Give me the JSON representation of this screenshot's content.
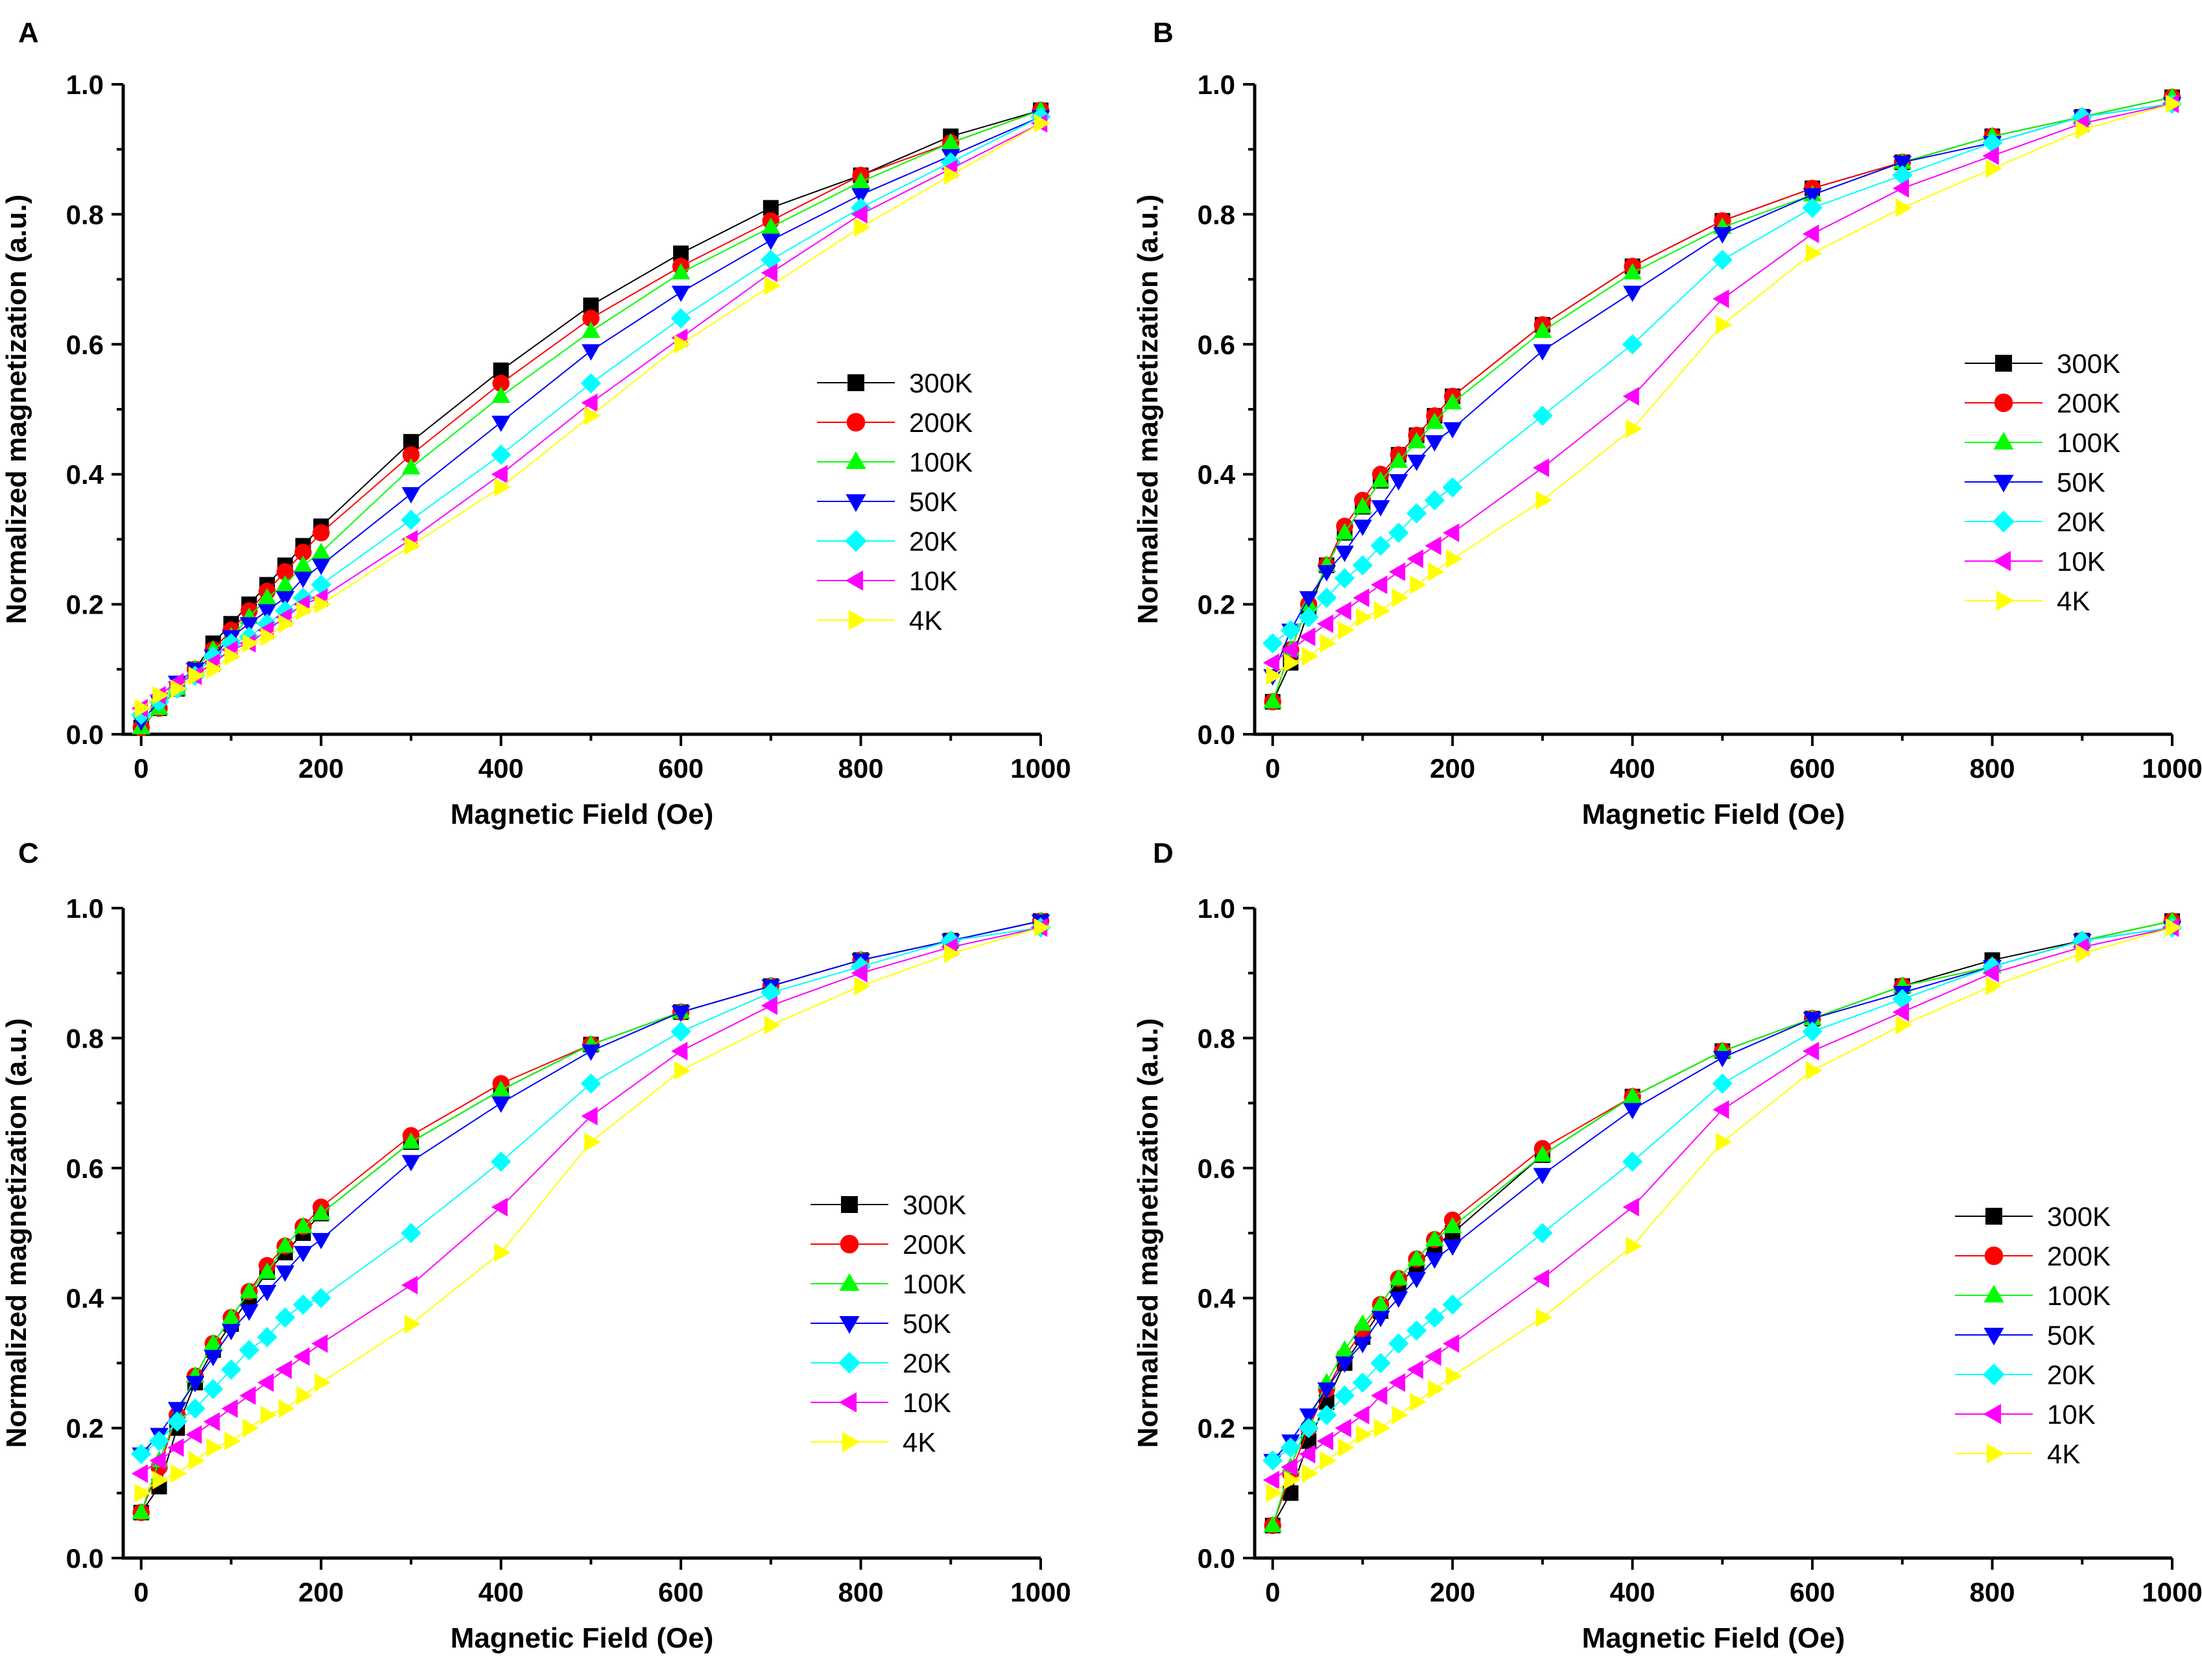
{
  "colors": {
    "300K": "#000000",
    "200K": "#ff0000",
    "100K": "#00ff00",
    "50K": "#0000ff",
    "20K": "#00ffff",
    "10K": "#ff00ff",
    "4K": "#ffff00"
  },
  "markers": {
    "300K": "square",
    "200K": "circle",
    "100K": "triangle-up",
    "50K": "triangle-down",
    "20K": "diamond",
    "10K": "triangle-left",
    "4K": "triangle-right"
  },
  "chart_data": [
    {
      "panel": "A",
      "type": "line",
      "xlabel": "Magnetic Field (Oe)",
      "ylabel": "Normalized magnetization (a.u.)",
      "xlim": [
        -20,
        1000
      ],
      "ylim": [
        0,
        1.0
      ],
      "xticks": [
        "0",
        "200",
        "400",
        "600",
        "800",
        "1000"
      ],
      "yticks": [
        "0.0",
        "0.2",
        "0.4",
        "0.6",
        "0.8",
        "1.0"
      ],
      "legend_position": "middle-right",
      "x": [
        0,
        20,
        40,
        60,
        80,
        100,
        120,
        140,
        160,
        180,
        200,
        300,
        400,
        500,
        600,
        700,
        800,
        900,
        1000
      ],
      "series": [
        {
          "name": "300K",
          "values": [
            0.01,
            0.04,
            0.07,
            0.1,
            0.14,
            0.17,
            0.2,
            0.23,
            0.26,
            0.29,
            0.32,
            0.45,
            0.56,
            0.66,
            0.74,
            0.81,
            0.86,
            0.92,
            0.96
          ]
        },
        {
          "name": "200K",
          "values": [
            0.01,
            0.04,
            0.07,
            0.1,
            0.13,
            0.16,
            0.19,
            0.22,
            0.25,
            0.28,
            0.31,
            0.43,
            0.54,
            0.64,
            0.72,
            0.79,
            0.86,
            0.91,
            0.96
          ]
        },
        {
          "name": "100K",
          "values": [
            0.01,
            0.04,
            0.07,
            0.1,
            0.13,
            0.15,
            0.18,
            0.21,
            0.23,
            0.26,
            0.28,
            0.41,
            0.52,
            0.62,
            0.71,
            0.78,
            0.85,
            0.91,
            0.96
          ]
        },
        {
          "name": "50K",
          "values": [
            0.02,
            0.05,
            0.08,
            0.1,
            0.12,
            0.15,
            0.17,
            0.19,
            0.21,
            0.24,
            0.26,
            0.37,
            0.48,
            0.59,
            0.68,
            0.76,
            0.83,
            0.89,
            0.95
          ]
        },
        {
          "name": "20K",
          "values": [
            0.03,
            0.05,
            0.07,
            0.09,
            0.12,
            0.14,
            0.15,
            0.17,
            0.19,
            0.21,
            0.23,
            0.33,
            0.43,
            0.54,
            0.64,
            0.73,
            0.81,
            0.88,
            0.95
          ]
        },
        {
          "name": "10K",
          "values": [
            0.04,
            0.06,
            0.08,
            0.09,
            0.11,
            0.13,
            0.14,
            0.16,
            0.18,
            0.2,
            0.21,
            0.3,
            0.4,
            0.51,
            0.61,
            0.71,
            0.8,
            0.87,
            0.94
          ]
        },
        {
          "name": "4K",
          "values": [
            0.04,
            0.06,
            0.07,
            0.09,
            0.1,
            0.12,
            0.14,
            0.15,
            0.17,
            0.19,
            0.2,
            0.29,
            0.38,
            0.49,
            0.6,
            0.69,
            0.78,
            0.86,
            0.94
          ]
        }
      ]
    },
    {
      "panel": "B",
      "type": "line",
      "xlabel": "Magnetic Field (Oe)",
      "ylabel": "Normalized magnetization (a.u.)",
      "xlim": [
        -20,
        1000
      ],
      "ylim": [
        0,
        1.0
      ],
      "xticks": [
        "0",
        "200",
        "400",
        "600",
        "800",
        "1000"
      ],
      "yticks": [
        "0.0",
        "0.2",
        "0.4",
        "0.6",
        "0.8",
        "1.0"
      ],
      "legend_position": "middle-right",
      "x": [
        0,
        20,
        40,
        60,
        80,
        100,
        120,
        140,
        160,
        180,
        200,
        300,
        400,
        500,
        600,
        700,
        800,
        900,
        1000
      ],
      "series": [
        {
          "name": "300K",
          "values": [
            0.05,
            0.11,
            0.19,
            0.26,
            0.31,
            0.35,
            0.39,
            0.43,
            0.46,
            0.49,
            0.52,
            0.63,
            0.72,
            0.79,
            0.84,
            0.88,
            0.92,
            0.95,
            0.98
          ]
        },
        {
          "name": "200K",
          "values": [
            0.05,
            0.13,
            0.2,
            0.26,
            0.32,
            0.36,
            0.4,
            0.43,
            0.46,
            0.49,
            0.52,
            0.63,
            0.72,
            0.79,
            0.84,
            0.88,
            0.92,
            0.95,
            0.98
          ]
        },
        {
          "name": "100K",
          "values": [
            0.05,
            0.13,
            0.2,
            0.26,
            0.31,
            0.35,
            0.39,
            0.42,
            0.45,
            0.48,
            0.51,
            0.62,
            0.71,
            0.78,
            0.83,
            0.88,
            0.92,
            0.95,
            0.98
          ]
        },
        {
          "name": "50K",
          "values": [
            0.09,
            0.16,
            0.21,
            0.25,
            0.28,
            0.32,
            0.35,
            0.39,
            0.42,
            0.45,
            0.47,
            0.59,
            0.68,
            0.77,
            0.83,
            0.88,
            0.91,
            0.95,
            0.97
          ]
        },
        {
          "name": "20K",
          "values": [
            0.14,
            0.16,
            0.18,
            0.21,
            0.24,
            0.26,
            0.29,
            0.31,
            0.34,
            0.36,
            0.38,
            0.49,
            0.6,
            0.73,
            0.81,
            0.86,
            0.91,
            0.95,
            0.97
          ]
        },
        {
          "name": "10K",
          "values": [
            0.11,
            0.13,
            0.15,
            0.17,
            0.19,
            0.21,
            0.23,
            0.25,
            0.27,
            0.29,
            0.31,
            0.41,
            0.52,
            0.67,
            0.77,
            0.84,
            0.89,
            0.94,
            0.97
          ]
        },
        {
          "name": "4K",
          "values": [
            0.09,
            0.11,
            0.12,
            0.14,
            0.16,
            0.18,
            0.19,
            0.21,
            0.23,
            0.25,
            0.27,
            0.36,
            0.47,
            0.63,
            0.74,
            0.81,
            0.87,
            0.93,
            0.97
          ]
        }
      ]
    },
    {
      "panel": "C",
      "type": "line",
      "xlabel": "Magnetic Field (Oe)",
      "ylabel": "Normalized magnetization (a.u.)",
      "xlim": [
        -20,
        1000
      ],
      "ylim": [
        0,
        1.0
      ],
      "xticks": [
        "0",
        "200",
        "400",
        "600",
        "800",
        "1000"
      ],
      "yticks": [
        "0.0",
        "0.2",
        "0.4",
        "0.6",
        "0.8",
        "1.0"
      ],
      "legend_position": "lower-right",
      "x": [
        0,
        20,
        40,
        60,
        80,
        100,
        120,
        140,
        160,
        180,
        200,
        300,
        400,
        500,
        600,
        700,
        800,
        900,
        1000
      ],
      "series": [
        {
          "name": "300K",
          "values": [
            0.07,
            0.11,
            0.2,
            0.27,
            0.32,
            0.36,
            0.4,
            0.44,
            0.47,
            0.5,
            0.53,
            0.64,
            0.72,
            0.79,
            0.84,
            0.88,
            0.92,
            0.95,
            0.98
          ]
        },
        {
          "name": "200K",
          "values": [
            0.07,
            0.14,
            0.22,
            0.28,
            0.33,
            0.37,
            0.41,
            0.45,
            0.48,
            0.51,
            0.54,
            0.65,
            0.73,
            0.79,
            0.84,
            0.88,
            0.92,
            0.95,
            0.98
          ]
        },
        {
          "name": "100K",
          "values": [
            0.07,
            0.15,
            0.22,
            0.28,
            0.33,
            0.37,
            0.41,
            0.44,
            0.48,
            0.51,
            0.53,
            0.64,
            0.72,
            0.79,
            0.84,
            0.88,
            0.92,
            0.95,
            0.98
          ]
        },
        {
          "name": "50K",
          "values": [
            0.16,
            0.19,
            0.23,
            0.27,
            0.31,
            0.35,
            0.38,
            0.41,
            0.44,
            0.47,
            0.49,
            0.61,
            0.7,
            0.78,
            0.84,
            0.88,
            0.92,
            0.95,
            0.98
          ]
        },
        {
          "name": "20K",
          "values": [
            0.16,
            0.18,
            0.21,
            0.23,
            0.26,
            0.29,
            0.32,
            0.34,
            0.37,
            0.39,
            0.4,
            0.5,
            0.61,
            0.73,
            0.81,
            0.87,
            0.91,
            0.95,
            0.97
          ]
        },
        {
          "name": "10K",
          "values": [
            0.13,
            0.15,
            0.17,
            0.19,
            0.21,
            0.23,
            0.25,
            0.27,
            0.29,
            0.31,
            0.33,
            0.42,
            0.54,
            0.68,
            0.78,
            0.85,
            0.9,
            0.94,
            0.97
          ]
        },
        {
          "name": "4K",
          "values": [
            0.1,
            0.12,
            0.13,
            0.15,
            0.17,
            0.18,
            0.2,
            0.22,
            0.23,
            0.25,
            0.27,
            0.36,
            0.47,
            0.64,
            0.75,
            0.82,
            0.88,
            0.93,
            0.97
          ]
        }
      ]
    },
    {
      "panel": "D",
      "type": "line",
      "xlabel": "Magnetic Field (Oe)",
      "ylabel": "Normalized magnetization (a.u.)",
      "xlim": [
        -20,
        1000
      ],
      "ylim": [
        0,
        1.0
      ],
      "xticks": [
        "0",
        "200",
        "400",
        "600",
        "800",
        "1000"
      ],
      "yticks": [
        "0.0",
        "0.2",
        "0.4",
        "0.6",
        "0.8",
        "1.0"
      ],
      "legend_position": "lower-right",
      "x": [
        0,
        20,
        40,
        60,
        80,
        100,
        120,
        140,
        160,
        180,
        200,
        300,
        400,
        500,
        600,
        700,
        800,
        900,
        1000
      ],
      "series": [
        {
          "name": "300K",
          "values": [
            0.05,
            0.1,
            0.18,
            0.24,
            0.3,
            0.34,
            0.38,
            0.42,
            0.45,
            0.48,
            0.5,
            0.62,
            0.71,
            0.78,
            0.83,
            0.88,
            0.92,
            0.95,
            0.98
          ]
        },
        {
          "name": "200K",
          "values": [
            0.05,
            0.13,
            0.2,
            0.26,
            0.31,
            0.35,
            0.39,
            0.43,
            0.46,
            0.49,
            0.52,
            0.63,
            0.71,
            0.78,
            0.83,
            0.88,
            0.91,
            0.95,
            0.98
          ]
        },
        {
          "name": "100K",
          "values": [
            0.05,
            0.14,
            0.21,
            0.27,
            0.32,
            0.36,
            0.39,
            0.43,
            0.46,
            0.49,
            0.51,
            0.62,
            0.71,
            0.78,
            0.83,
            0.88,
            0.91,
            0.95,
            0.98
          ]
        },
        {
          "name": "50K",
          "values": [
            0.15,
            0.18,
            0.22,
            0.26,
            0.3,
            0.33,
            0.37,
            0.4,
            0.43,
            0.46,
            0.48,
            0.59,
            0.69,
            0.77,
            0.83,
            0.87,
            0.91,
            0.95,
            0.97
          ]
        },
        {
          "name": "20K",
          "values": [
            0.15,
            0.17,
            0.2,
            0.22,
            0.25,
            0.27,
            0.3,
            0.33,
            0.35,
            0.37,
            0.39,
            0.5,
            0.61,
            0.73,
            0.81,
            0.86,
            0.91,
            0.95,
            0.97
          ]
        },
        {
          "name": "10K",
          "values": [
            0.12,
            0.14,
            0.16,
            0.18,
            0.2,
            0.22,
            0.25,
            0.27,
            0.29,
            0.31,
            0.33,
            0.43,
            0.54,
            0.69,
            0.78,
            0.84,
            0.9,
            0.94,
            0.97
          ]
        },
        {
          "name": "4K",
          "values": [
            0.1,
            0.12,
            0.13,
            0.15,
            0.17,
            0.19,
            0.2,
            0.22,
            0.24,
            0.26,
            0.28,
            0.37,
            0.48,
            0.64,
            0.75,
            0.82,
            0.88,
            0.93,
            0.97
          ]
        }
      ]
    }
  ]
}
